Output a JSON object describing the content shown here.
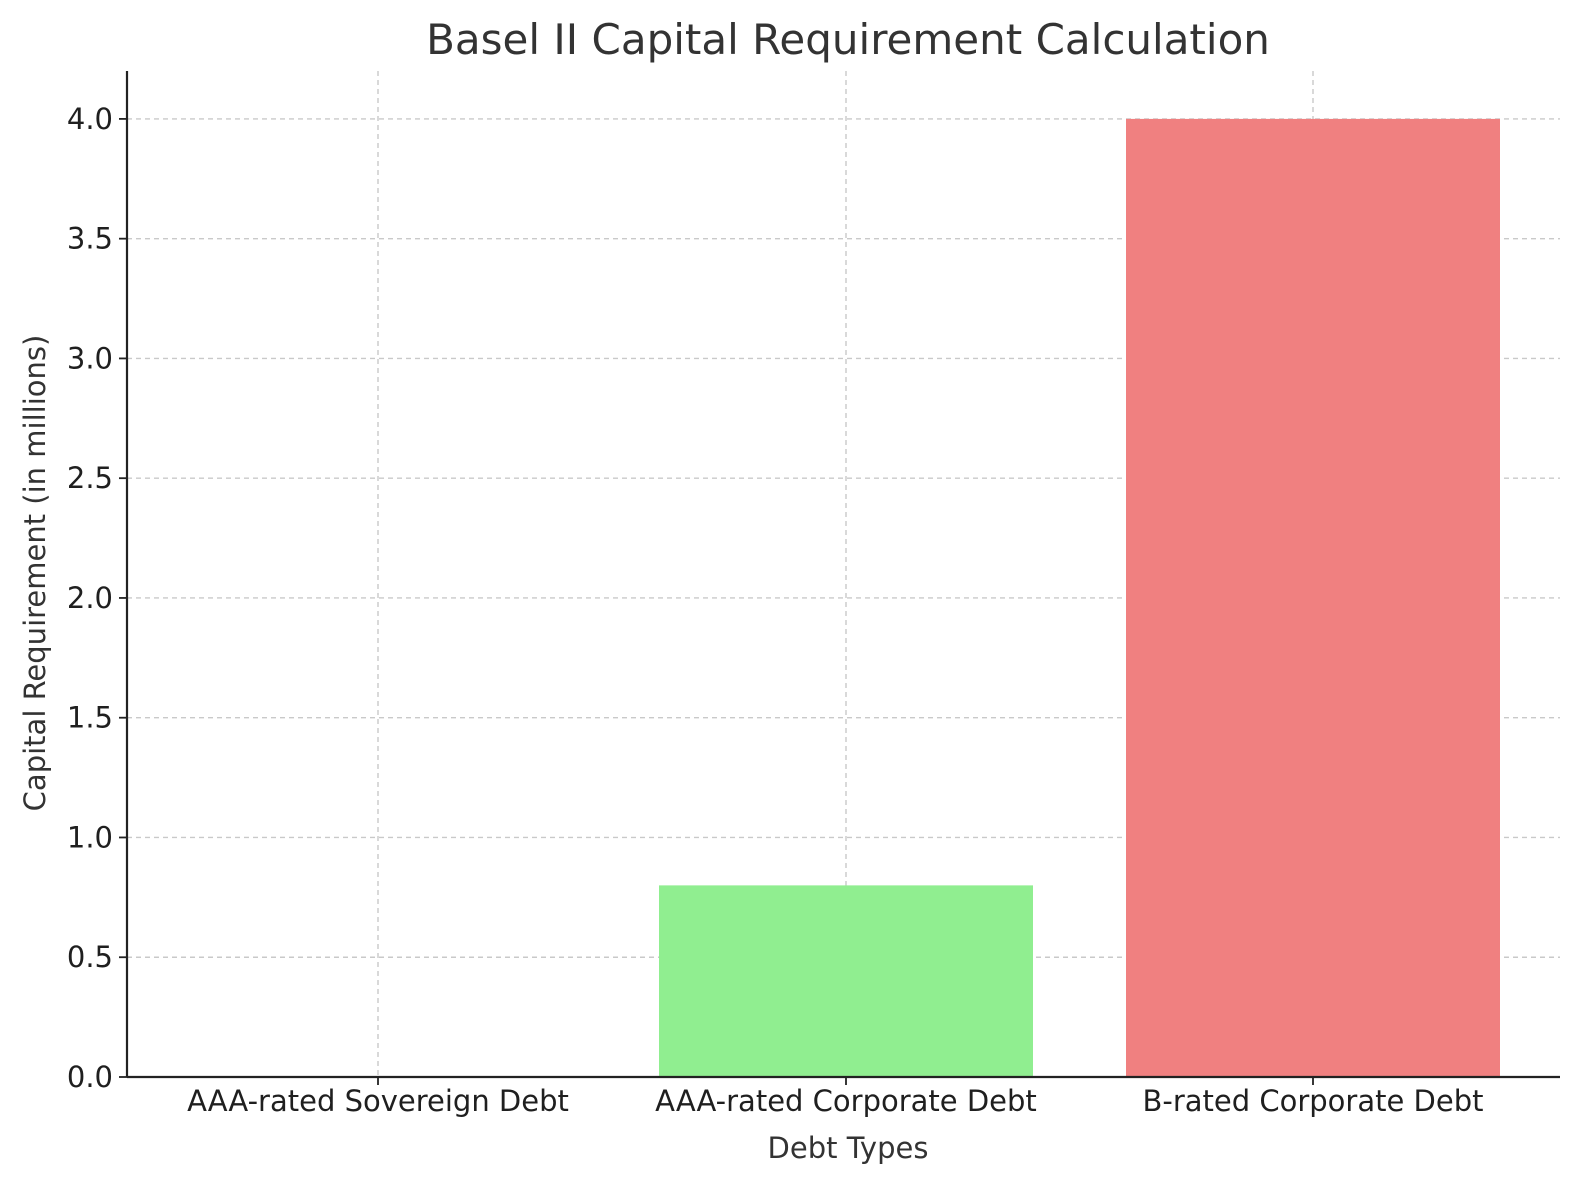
{
  "chart_data": {
    "type": "bar",
    "title": "Basel II Capital Requirement Calculation",
    "xlabel": "Debt Types",
    "ylabel": "Capital Requirement (in millions)",
    "categories": [
      "AAA-rated Sovereign Debt",
      "AAA-rated Corporate Debt",
      "B-rated Corporate Debt"
    ],
    "values": [
      0.0,
      0.8,
      4.0
    ],
    "colors": [
      "#87cefa",
      "#90ee90",
      "#f08080"
    ],
    "ylim": [
      0,
      4.2
    ],
    "yticks": [
      "0.0",
      "0.5",
      "1.0",
      "1.5",
      "2.0",
      "2.5",
      "3.0",
      "3.5",
      "4.0"
    ],
    "grid": true,
    "legend": "none"
  }
}
